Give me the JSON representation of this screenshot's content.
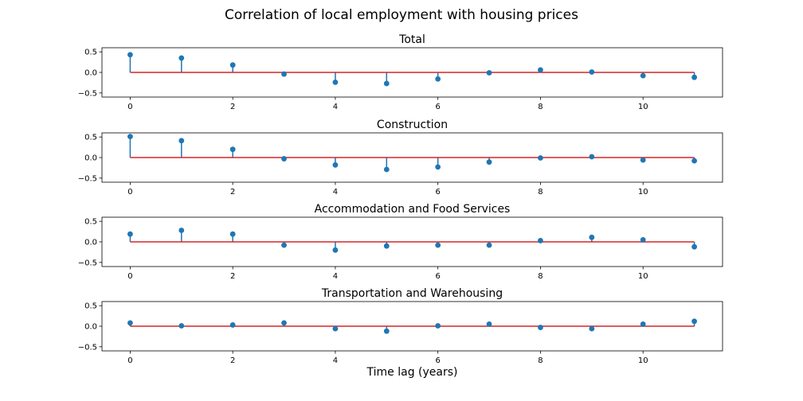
{
  "figure": {
    "suptitle": "Correlation of local employment with housing prices",
    "xlabel": "Time lag (years)"
  },
  "colors": {
    "stem": "#1f77b4",
    "baseline": "#d62728",
    "axes": "#000000"
  },
  "chart_data": [
    {
      "type": "stem",
      "title": "Total",
      "x": [
        0,
        1,
        2,
        3,
        4,
        5,
        6,
        7,
        8,
        9,
        10,
        11
      ],
      "values": [
        0.43,
        0.35,
        0.18,
        -0.04,
        -0.24,
        -0.27,
        -0.16,
        -0.01,
        0.06,
        0.01,
        -0.08,
        -0.12
      ],
      "xlim": [
        -0.55,
        11.55
      ],
      "ylim": [
        -0.6,
        0.6
      ],
      "xticks": [
        0,
        2,
        4,
        6,
        8,
        10
      ],
      "yticks": [
        0.5,
        0.0,
        -0.5
      ],
      "xtick_labels": [
        "0",
        "2",
        "4",
        "6",
        "8",
        "10"
      ],
      "ytick_labels": [
        "0.5",
        "0.0",
        "−0.5"
      ],
      "xlabel": ""
    },
    {
      "type": "stem",
      "title": "Construction",
      "x": [
        0,
        1,
        2,
        3,
        4,
        5,
        6,
        7,
        8,
        9,
        10,
        11
      ],
      "values": [
        0.51,
        0.41,
        0.2,
        -0.03,
        -0.18,
        -0.29,
        -0.23,
        -0.11,
        -0.01,
        0.02,
        -0.06,
        -0.08
      ],
      "xlim": [
        -0.55,
        11.55
      ],
      "ylim": [
        -0.6,
        0.6
      ],
      "xticks": [
        0,
        2,
        4,
        6,
        8,
        10
      ],
      "yticks": [
        0.5,
        0.0,
        -0.5
      ],
      "xtick_labels": [
        "0",
        "2",
        "4",
        "6",
        "8",
        "10"
      ],
      "ytick_labels": [
        "0.5",
        "0.0",
        "−0.5"
      ],
      "xlabel": ""
    },
    {
      "type": "stem",
      "title": "Accommodation and Food Services",
      "x": [
        0,
        1,
        2,
        3,
        4,
        5,
        6,
        7,
        8,
        9,
        10,
        11
      ],
      "values": [
        0.19,
        0.28,
        0.19,
        -0.08,
        -0.2,
        -0.1,
        -0.08,
        -0.08,
        0.03,
        0.11,
        0.05,
        -0.12
      ],
      "xlim": [
        -0.55,
        11.55
      ],
      "ylim": [
        -0.6,
        0.6
      ],
      "xticks": [
        0,
        2,
        4,
        6,
        8,
        10
      ],
      "yticks": [
        0.5,
        0.0,
        -0.5
      ],
      "xtick_labels": [
        "0",
        "2",
        "4",
        "6",
        "8",
        "10"
      ],
      "ytick_labels": [
        "0.5",
        "0.0",
        "−0.5"
      ],
      "xlabel": ""
    },
    {
      "type": "stem",
      "title": "Transportation and Warehousing",
      "x": [
        0,
        1,
        2,
        3,
        4,
        5,
        6,
        7,
        8,
        9,
        10,
        11
      ],
      "values": [
        0.08,
        0.01,
        0.03,
        0.08,
        -0.06,
        -0.12,
        0.01,
        0.05,
        -0.03,
        -0.06,
        0.05,
        0.12
      ],
      "xlim": [
        -0.55,
        11.55
      ],
      "ylim": [
        -0.6,
        0.6
      ],
      "xticks": [
        0,
        2,
        4,
        6,
        8,
        10
      ],
      "yticks": [
        0.5,
        0.0,
        -0.5
      ],
      "xtick_labels": [
        "0",
        "2",
        "4",
        "6",
        "8",
        "10"
      ],
      "ytick_labels": [
        "0.5",
        "0.0",
        "−0.5"
      ],
      "xlabel": "Time lag (years)"
    }
  ]
}
